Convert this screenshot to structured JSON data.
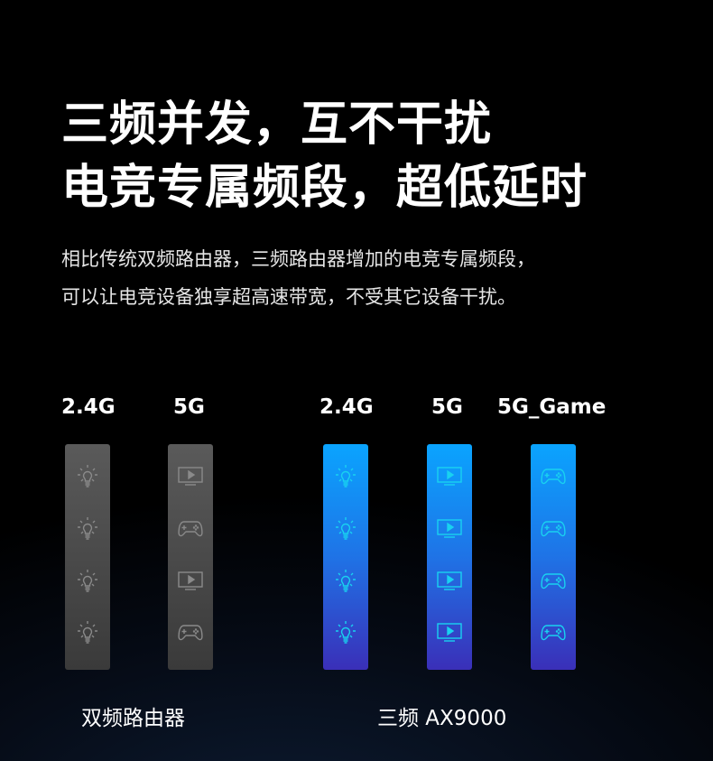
{
  "headline": {
    "line1": "三频并发，互不干扰",
    "line2": "电竞专属频段，超低延时"
  },
  "description": {
    "line1": "相比传统双频路由器，三频路由器增加的电竞专属频段，",
    "line2": "可以让电竞设备独享超高速带宽，不受其它设备干扰。"
  },
  "colors": {
    "dual_band": "#4a4a4a",
    "tri_band_top": "#0aa4ff",
    "tri_band_bottom": "#3a2fb8",
    "icon_tri": "#19d2f0"
  },
  "dual": {
    "caption": "双频路由器",
    "bands": [
      {
        "label": "2.4G",
        "icons": [
          "lightbulb",
          "lightbulb",
          "lightbulb",
          "lightbulb"
        ]
      },
      {
        "label": "5G",
        "icons": [
          "tv-play",
          "gamepad",
          "tv-play",
          "gamepad"
        ]
      }
    ]
  },
  "tri": {
    "caption": "三频 AX9000",
    "bands": [
      {
        "label": "2.4G",
        "icons": [
          "lightbulb",
          "lightbulb",
          "lightbulb",
          "lightbulb"
        ]
      },
      {
        "label": "5G",
        "icons": [
          "tv-play",
          "tv-play",
          "tv-play",
          "tv-play"
        ]
      },
      {
        "label": "5G_Game",
        "icons": [
          "gamepad",
          "gamepad",
          "gamepad",
          "gamepad"
        ]
      }
    ]
  }
}
